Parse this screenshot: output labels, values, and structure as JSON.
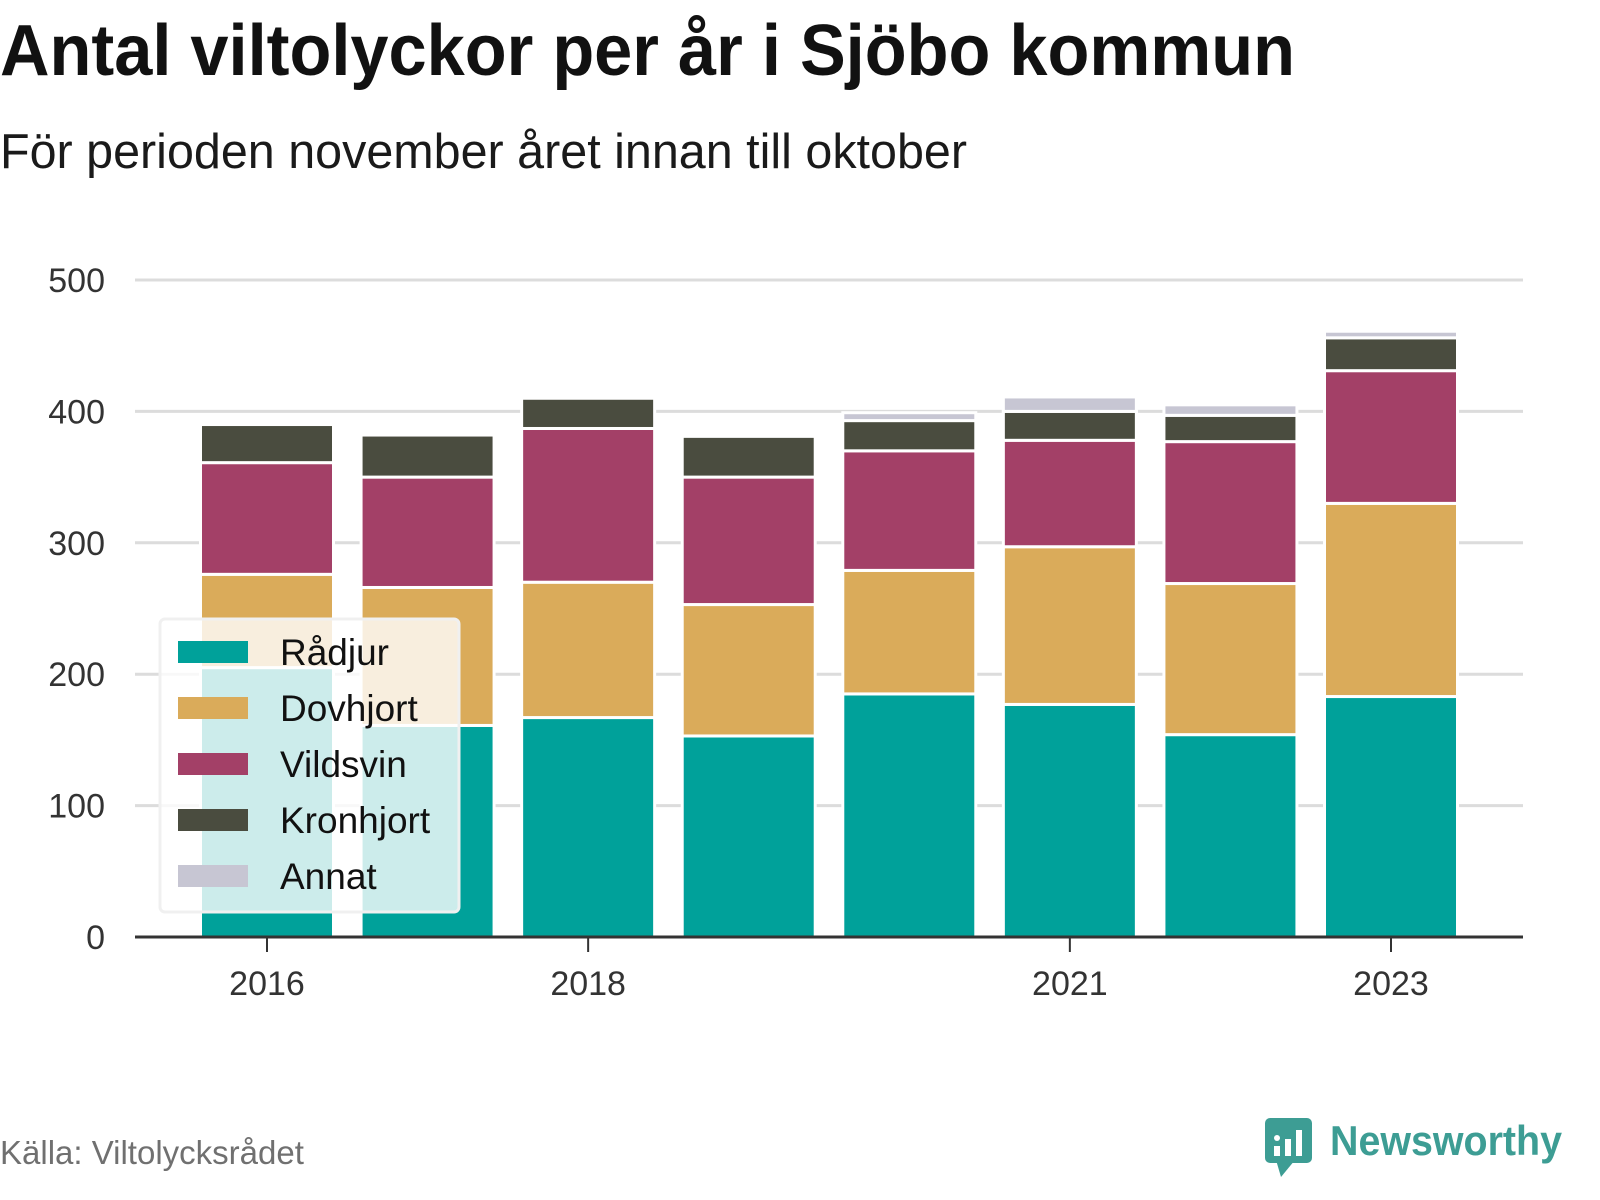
{
  "chart_data": {
    "type": "bar",
    "stacked": true,
    "title": "Antal viltolyckor per år i Sjöbo kommun",
    "subtitle": "För perioden november året innan till oktober",
    "categories": [
      2016,
      2017,
      2018,
      2019,
      2020,
      2021,
      2022,
      2023
    ],
    "xticks": [
      2016,
      2018,
      2021,
      2023
    ],
    "yticks": [
      0,
      100,
      200,
      300,
      400,
      500
    ],
    "ylim": [
      0,
      500
    ],
    "grid": true,
    "legend": "bottom-left",
    "series": [
      {
        "name": "Rådjur",
        "color": "#00a19a",
        "values": [
          205,
          161,
          167,
          153,
          185,
          177,
          154,
          183
        ]
      },
      {
        "name": "Dovhjort",
        "color": "#daab5a",
        "values": [
          71,
          105,
          103,
          100,
          94,
          120,
          115,
          147
        ]
      },
      {
        "name": "Vildsvin",
        "color": "#a34067",
        "values": [
          85,
          84,
          117,
          97,
          91,
          81,
          108,
          101
        ]
      },
      {
        "name": "Kronhjort",
        "color": "#4a4c3f",
        "values": [
          29,
          32,
          23,
          31,
          23,
          22,
          20,
          25
        ]
      },
      {
        "name": "Annat",
        "color": "#c7c6d3",
        "values": [
          0,
          0,
          0,
          0,
          6,
          11,
          8,
          5
        ]
      }
    ]
  },
  "source": "Källa: Viltolycksrådet",
  "logo": {
    "text": "Newsworthy",
    "icon": "newsworthy-bar-chart-bubble-icon",
    "color": "#3d9d94"
  },
  "colors": {
    "gridline": "#dcdcdc",
    "axis": "#333333",
    "background": "#ffffff"
  }
}
